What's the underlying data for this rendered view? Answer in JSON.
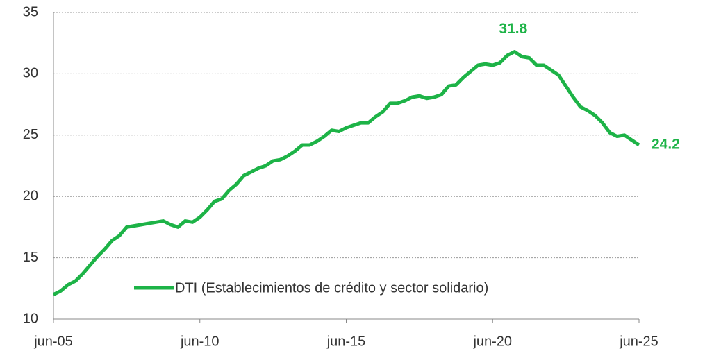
{
  "chart_data": {
    "type": "line",
    "categories": [
      "jun-05",
      null,
      null,
      null,
      null,
      null,
      null,
      null,
      null,
      null,
      null,
      null,
      null,
      null,
      null,
      null,
      null,
      null,
      null,
      null,
      "jun-10",
      null,
      null,
      null,
      null,
      null,
      null,
      null,
      null,
      null,
      null,
      null,
      null,
      null,
      null,
      null,
      null,
      null,
      null,
      null,
      "jun-15",
      null,
      null,
      null,
      null,
      null,
      null,
      null,
      null,
      null,
      null,
      null,
      null,
      null,
      null,
      null,
      null,
      null,
      null,
      null,
      "jun-20",
      null,
      null,
      null,
      null,
      null,
      null,
      null,
      null,
      null,
      null,
      null,
      null,
      null,
      null,
      null,
      null,
      null,
      null,
      null,
      "jun-25"
    ],
    "series": [
      {
        "name": "DTI (Establecimientos de crédito y sector solidario)",
        "color": "#1db347",
        "values": [
          12.0,
          12.3,
          12.8,
          13.1,
          13.7,
          14.4,
          15.1,
          15.7,
          16.4,
          16.8,
          17.5,
          17.6,
          17.7,
          17.8,
          17.9,
          18.0,
          17.7,
          17.5,
          18.0,
          17.9,
          18.3,
          18.9,
          19.6,
          19.8,
          20.5,
          21.0,
          21.7,
          22.0,
          22.3,
          22.5,
          22.9,
          23.0,
          23.3,
          23.7,
          24.2,
          24.2,
          24.5,
          24.9,
          25.4,
          25.3,
          25.6,
          25.8,
          26.0,
          26.0,
          26.5,
          26.9,
          27.6,
          27.6,
          27.8,
          28.1,
          28.2,
          28.0,
          28.1,
          28.3,
          29.0,
          29.1,
          29.7,
          30.2,
          30.7,
          30.8,
          30.7,
          30.9,
          31.5,
          31.8,
          31.4,
          31.3,
          30.7,
          30.7,
          30.3,
          29.9,
          29.0,
          28.1,
          27.3,
          27.0,
          26.6,
          26.0,
          25.2,
          24.9,
          25.0,
          24.6,
          24.2
        ],
        "value_labels": [
          null,
          null,
          null,
          null,
          null,
          null,
          null,
          null,
          null,
          null,
          null,
          null,
          null,
          null,
          null,
          null,
          null,
          null,
          null,
          null,
          null,
          null,
          null,
          null,
          null,
          null,
          null,
          null,
          null,
          null,
          null,
          null,
          null,
          null,
          null,
          null,
          null,
          null,
          null,
          null,
          null,
          null,
          null,
          null,
          null,
          null,
          null,
          null,
          null,
          null,
          null,
          null,
          null,
          null,
          null,
          null,
          null,
          null,
          null,
          null,
          null,
          null,
          null,
          "31.8",
          null,
          null,
          null,
          null,
          null,
          null,
          null,
          null,
          null,
          null,
          null,
          null,
          null,
          null,
          null,
          null,
          "24.2"
        ]
      }
    ],
    "ylim": [
      10,
      35
    ],
    "yticks": [
      10,
      15,
      20,
      25,
      30,
      35
    ],
    "grid": true,
    "legend": "lower right"
  }
}
